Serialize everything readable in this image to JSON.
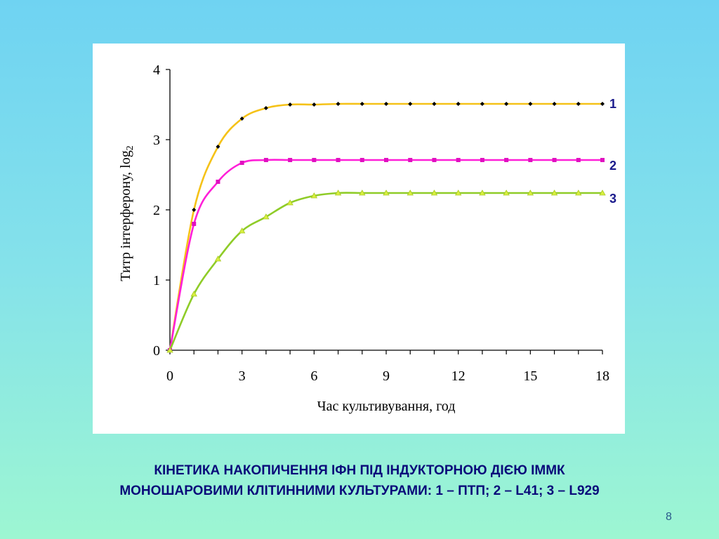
{
  "caption": {
    "line1": "КІНЕТИКА НАКОПИЧЕННЯ ІФН ПІД ІНДУКТОРНОЮ ДІЄЮ ІММК",
    "line2": "МОНОШАРОВИМИ КЛІТИННИМИ КУЛЬТУРАМИ: 1 – ПТП; 2 – L41; 3 – L929"
  },
  "page_number": "8",
  "chart_data": {
    "type": "line",
    "xlabel": "Час культивування, год",
    "ylabel": "Титр інтерферону, log",
    "ylabel_subscript": "2",
    "xlim": [
      0,
      18
    ],
    "ylim": [
      0,
      4
    ],
    "xticks": [
      0,
      3,
      6,
      9,
      12,
      15,
      18
    ],
    "yticks": [
      0,
      1,
      2,
      3,
      4
    ],
    "x": [
      0,
      1,
      2,
      3,
      4,
      5,
      6,
      7,
      8,
      9,
      10,
      11,
      12,
      13,
      14,
      15,
      16,
      17,
      18
    ],
    "series": [
      {
        "name": "1",
        "color": "#f5c218",
        "marker": "diamond",
        "marker_color": "#000000",
        "values": [
          0,
          2.0,
          2.9,
          3.3,
          3.45,
          3.5,
          3.5,
          3.51,
          3.51,
          3.51,
          3.51,
          3.51,
          3.51,
          3.51,
          3.51,
          3.51,
          3.51,
          3.51,
          3.51
        ]
      },
      {
        "name": "2",
        "color": "#ff1fd8",
        "marker": "square",
        "marker_color": "#e010c0",
        "values": [
          0,
          1.8,
          2.4,
          2.67,
          2.71,
          2.71,
          2.71,
          2.71,
          2.71,
          2.71,
          2.71,
          2.71,
          2.71,
          2.71,
          2.71,
          2.71,
          2.71,
          2.71,
          2.71
        ]
      },
      {
        "name": "3",
        "color": "#8fcc28",
        "marker": "triangle",
        "marker_color": "#d8f040",
        "values": [
          0,
          0.8,
          1.3,
          1.7,
          1.9,
          2.1,
          2.2,
          2.24,
          2.24,
          2.24,
          2.24,
          2.24,
          2.24,
          2.24,
          2.24,
          2.24,
          2.24,
          2.24,
          2.24
        ]
      }
    ]
  }
}
